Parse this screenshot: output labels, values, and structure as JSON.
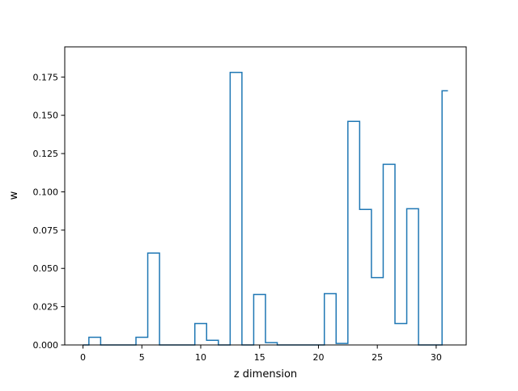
{
  "chart_data": {
    "type": "step",
    "title": "",
    "xlabel": "z dimension",
    "ylabel": "w",
    "xlim": [
      -1.55,
      32.55
    ],
    "ylim": [
      0.0,
      0.1947
    ],
    "xticks": [
      0,
      5,
      10,
      15,
      20,
      25,
      30
    ],
    "yticks": [
      0.0,
      0.025,
      0.05,
      0.075,
      0.1,
      0.125,
      0.15,
      0.175
    ],
    "ytick_labels": [
      "0.000",
      "0.025",
      "0.050",
      "0.075",
      "0.100",
      "0.125",
      "0.150",
      "0.175"
    ],
    "grid": false,
    "legend": false,
    "step_where": "mid",
    "series": [
      {
        "color": "#1f77b4",
        "x": [
          0,
          1,
          2,
          3,
          4,
          5,
          6,
          7,
          8,
          9,
          10,
          11,
          12,
          13,
          14,
          15,
          16,
          17,
          18,
          19,
          20,
          21,
          22,
          23,
          24,
          25,
          26,
          27,
          28,
          29,
          30,
          31
        ],
        "values": [
          0.0,
          0.005,
          0.0,
          0.0,
          0.0,
          0.005,
          0.06,
          0.0,
          0.0,
          0.0,
          0.014,
          0.003,
          0.0,
          0.178,
          0.0,
          0.033,
          0.0015,
          0.0,
          0.0,
          0.0,
          0.0,
          0.0335,
          0.001,
          0.146,
          0.0885,
          0.044,
          0.118,
          0.014,
          0.089,
          0.0,
          0.0,
          0.166
        ]
      }
    ]
  }
}
